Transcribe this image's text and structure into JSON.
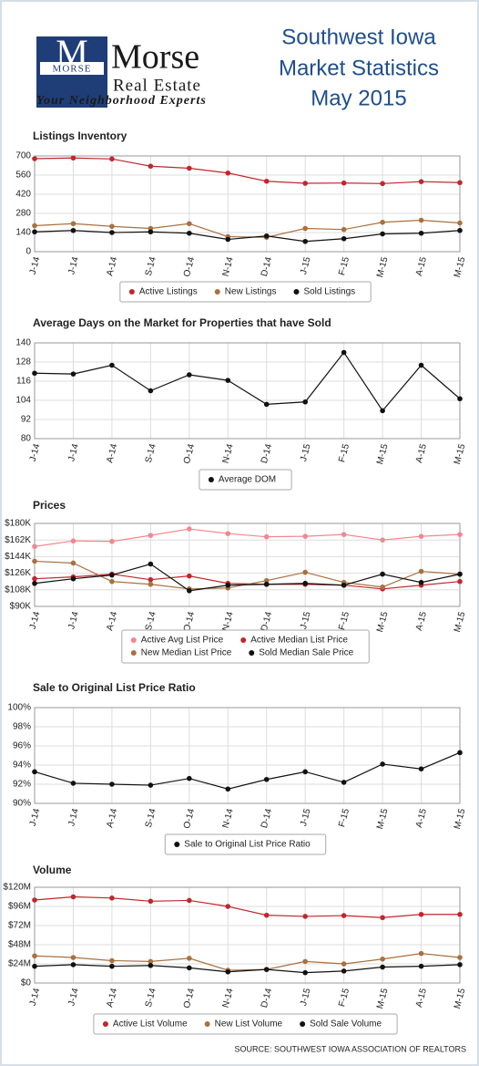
{
  "header": {
    "logo_text": "MORSE",
    "brand": "Morse",
    "brand_sub": "Real Estate",
    "tagline": "Your Neighborhood Experts",
    "title": [
      "Southwest Iowa",
      "Market Statistics",
      "May 2015"
    ]
  },
  "chart_data": [
    {
      "type": "line",
      "title": "Listings Inventory",
      "categories": [
        "J-14",
        "J-14",
        "A-14",
        "S-14",
        "O-14",
        "N-14",
        "D-14",
        "J-15",
        "F-15",
        "M-15",
        "A-15",
        "M-15"
      ],
      "ylim": [
        0,
        700
      ],
      "yticks": [
        0,
        140,
        280,
        420,
        560,
        700
      ],
      "grid": true,
      "series": [
        {
          "name": "Active Listings",
          "color": "#c0272d",
          "values": [
            680,
            685,
            678,
            625,
            610,
            575,
            515,
            500,
            502,
            498,
            512,
            505
          ]
        },
        {
          "name": "New Listings",
          "color": "#a8713f",
          "values": [
            190,
            205,
            185,
            170,
            205,
            110,
            105,
            170,
            162,
            215,
            230,
            210
          ]
        },
        {
          "name": "Sold Listings",
          "color": "#111111",
          "values": [
            145,
            155,
            140,
            145,
            135,
            90,
            115,
            75,
            95,
            130,
            135,
            155
          ]
        }
      ]
    },
    {
      "type": "line",
      "title": "Average Days on the Market for Properties that have Sold",
      "categories": [
        "J-14",
        "J-14",
        "A-14",
        "S-14",
        "O-14",
        "N-14",
        "D-14",
        "J-15",
        "F-15",
        "M-15",
        "A-15",
        "M-15"
      ],
      "ylim": [
        80,
        140
      ],
      "yticks": [
        80,
        92,
        104,
        116,
        128,
        140
      ],
      "grid": true,
      "series": [
        {
          "name": "Average DOM",
          "color": "#111111",
          "values": [
            121,
            120.5,
            126,
            110,
            120,
            116.5,
            101.5,
            103,
            134,
            97.5,
            126,
            105
          ]
        }
      ]
    },
    {
      "type": "line",
      "title": "Prices",
      "categories": [
        "J-14",
        "J-14",
        "A-14",
        "S-14",
        "O-14",
        "N-14",
        "D-14",
        "J-15",
        "F-15",
        "M-15",
        "A-15",
        "M-15"
      ],
      "ylim": [
        90000,
        180000
      ],
      "yticks": [
        {
          "value": 90000,
          "label": "$90K"
        },
        {
          "value": 108000,
          "label": "$108K"
        },
        {
          "value": 126000,
          "label": "$126K"
        },
        {
          "value": 144000,
          "label": "$144K"
        },
        {
          "value": 162000,
          "label": "$162K"
        },
        {
          "value": 180000,
          "label": "$180K"
        }
      ],
      "grid": true,
      "series": [
        {
          "name": "Active Avg List Price",
          "color": "#f4868f",
          "values": [
            155000,
            161000,
            160500,
            167000,
            174000,
            169000,
            165500,
            166000,
            168000,
            162000,
            166000,
            168000
          ]
        },
        {
          "name": "Active Median List Price",
          "color": "#c0272d",
          "values": [
            120000,
            122000,
            125000,
            119000,
            123000,
            115000,
            114000,
            114000,
            113000,
            109000,
            113000,
            117000
          ]
        },
        {
          "name": "New Median List Price",
          "color": "#a8713f",
          "values": [
            139000,
            137000,
            117000,
            114000,
            109000,
            110000,
            118000,
            127000,
            116000,
            111000,
            128000,
            125000
          ]
        },
        {
          "name": "Sold Median Sale Price",
          "color": "#111111",
          "values": [
            115000,
            120000,
            124000,
            136000,
            107000,
            113000,
            114000,
            115000,
            113000,
            125000,
            116000,
            125000
          ]
        }
      ]
    },
    {
      "type": "line",
      "title": "Sale to Original List Price Ratio",
      "categories": [
        "J-14",
        "J-14",
        "A-14",
        "S-14",
        "O-14",
        "N-14",
        "D-14",
        "J-15",
        "F-15",
        "M-15",
        "A-15",
        "M-15"
      ],
      "ylim": [
        90,
        100
      ],
      "yticks": [
        {
          "value": 90,
          "label": "90%"
        },
        {
          "value": 92,
          "label": "92%"
        },
        {
          "value": 94,
          "label": "94%"
        },
        {
          "value": 96,
          "label": "96%"
        },
        {
          "value": 98,
          "label": "98%"
        },
        {
          "value": 100,
          "label": "100%"
        }
      ],
      "grid": true,
      "series": [
        {
          "name": "Sale to Original List Price Ratio",
          "color": "#111111",
          "values": [
            93.3,
            92.1,
            92.0,
            91.9,
            92.6,
            91.5,
            92.5,
            93.3,
            92.2,
            94.1,
            93.6,
            95.3
          ]
        }
      ]
    },
    {
      "type": "line",
      "title": "Volume",
      "categories": [
        "J-14",
        "J-14",
        "A-14",
        "S-14",
        "O-14",
        "N-14",
        "D-14",
        "J-15",
        "F-15",
        "M-15",
        "A-15",
        "M-15"
      ],
      "ylim": [
        0,
        120000000
      ],
      "yticks": [
        {
          "value": 0,
          "label": "$0"
        },
        {
          "value": 24000000,
          "label": "$24M"
        },
        {
          "value": 48000000,
          "label": "$48M"
        },
        {
          "value": 72000000,
          "label": "$72M"
        },
        {
          "value": 96000000,
          "label": "$96M"
        },
        {
          "value": 120000000,
          "label": "$120M"
        }
      ],
      "grid": true,
      "series": [
        {
          "name": "Active List Volume",
          "color": "#c0272d",
          "values": [
            104000000,
            108000000,
            106500000,
            102500000,
            103500000,
            96000000,
            85000000,
            83500000,
            84500000,
            82000000,
            86000000,
            86000000
          ]
        },
        {
          "name": "New List Volume",
          "color": "#a8713f",
          "values": [
            34000000,
            32000000,
            28000000,
            27000000,
            31000000,
            16000000,
            17000000,
            27000000,
            24000000,
            30000000,
            37000000,
            32000000
          ]
        },
        {
          "name": "Sold Sale Volume",
          "color": "#111111",
          "values": [
            21000000,
            23000000,
            21000000,
            22000000,
            19000000,
            14000000,
            17000000,
            13000000,
            15000000,
            20000000,
            21000000,
            23000000
          ]
        }
      ]
    }
  ],
  "source": "SOURCE: SOUTHWEST IOWA ASSOCIATION OF REALTORS"
}
